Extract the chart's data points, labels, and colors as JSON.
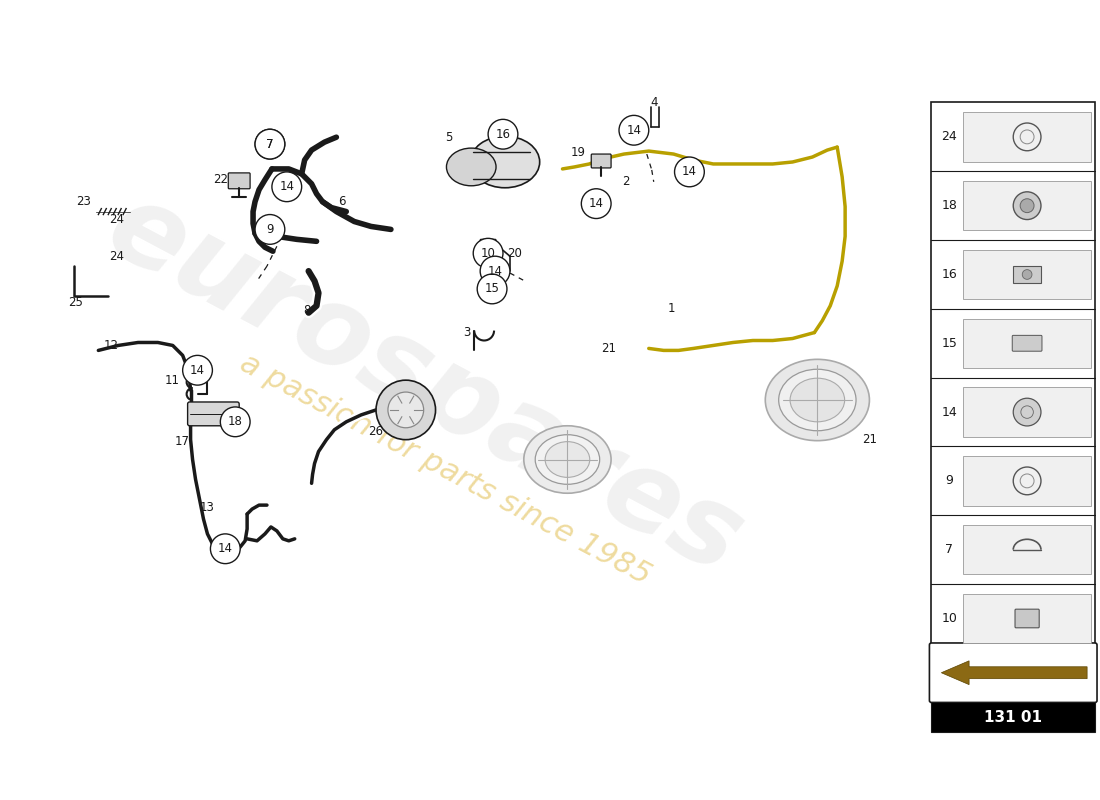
{
  "bg_color": "#ffffff",
  "watermark_text1": "eurospares",
  "watermark_text2": "a passion for parts since 1985",
  "diagram_code": "131 01",
  "line_color": "#1a1a1a",
  "yellow_line_color": "#b8a000",
  "sidebar_items": [
    "24",
    "18",
    "16",
    "15",
    "14",
    "9",
    "7",
    "10"
  ]
}
